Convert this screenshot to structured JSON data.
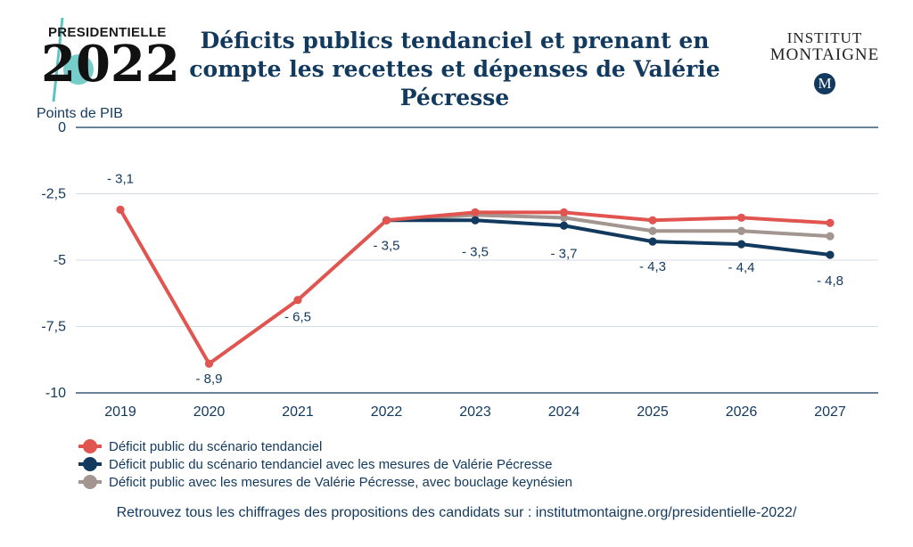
{
  "logo_left": {
    "top": "PRESIDENTIELLE",
    "year": "2022"
  },
  "logo_right": {
    "line1": "INSTITUT",
    "line2": "MONTAIGNE",
    "badge": "M"
  },
  "colors": {
    "red": "#e0554f",
    "navy": "#12395e",
    "grey": "#a3958f",
    "axis": "#12395e",
    "grid": "#d4dce6"
  },
  "footer": "Retrouvez tous les chiffrages des propositions des candidats sur : institutmontaigne.org/presidentielle-2022/",
  "chart_data": {
    "type": "line",
    "title": "Déficits publics tendanciel et prenant en compte les recettes et dépenses de Valérie Pécresse",
    "ylabel": "Points de PIB",
    "xlabel": "",
    "ylim": [
      -10,
      0
    ],
    "yticks": [
      0,
      -2.5,
      -5,
      -7.5,
      -10
    ],
    "ytick_labels": [
      "0",
      "-2,5",
      "-5",
      "-7,5",
      "-10"
    ],
    "categories": [
      "2019",
      "2020",
      "2021",
      "2022",
      "2023",
      "2024",
      "2025",
      "2026",
      "2027"
    ],
    "grid": true,
    "legend_position": "bottom-left",
    "series": [
      {
        "name": "Déficit public du scénario tendanciel",
        "color": "#e0554f",
        "values": [
          -3.1,
          -8.9,
          -6.5,
          -3.5,
          -3.2,
          -3.2,
          -3.5,
          -3.4,
          -3.6
        ]
      },
      {
        "name": "Déficit public du scénario tendanciel avec les mesures de Valérie Pécresse",
        "color": "#12395e",
        "values": [
          null,
          null,
          null,
          -3.5,
          -3.5,
          -3.7,
          -4.3,
          -4.4,
          -4.8
        ]
      },
      {
        "name": "Déficit public avec les mesures de Valérie Pécresse, avec bouclage keynésien",
        "color": "#a3958f",
        "values": [
          null,
          null,
          null,
          -3.5,
          -3.3,
          -3.4,
          -3.9,
          -3.9,
          -4.1
        ]
      }
    ],
    "data_labels": [
      "- 3,1",
      "- 8,9",
      "- 6,5",
      "- 3,5",
      "- 3,5",
      "- 3,7",
      "- 4,3",
      "- 4,4",
      "- 4,8"
    ]
  }
}
